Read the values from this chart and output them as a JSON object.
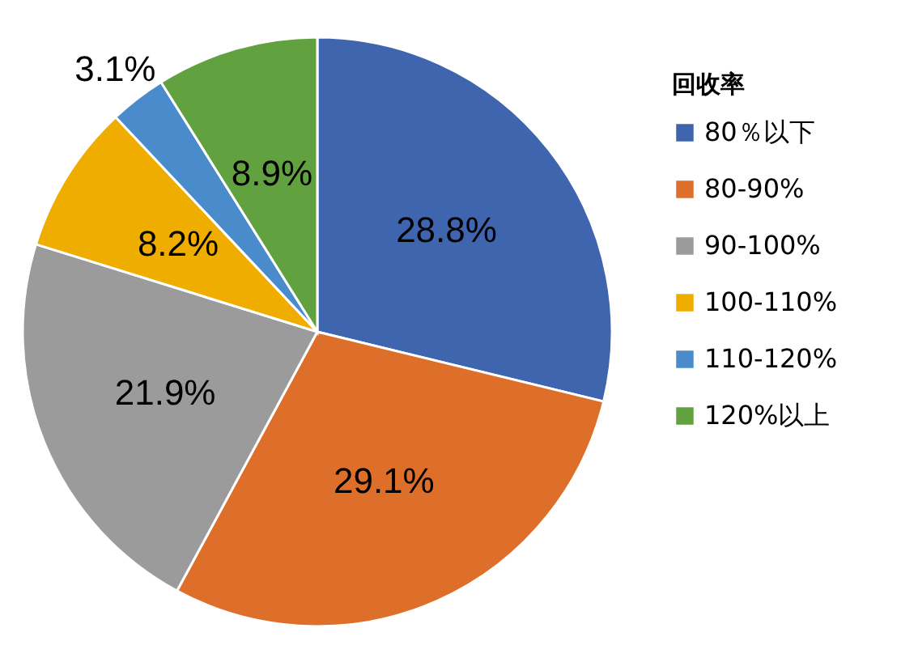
{
  "chart_data": {
    "type": "pie",
    "legend_title": "回收率",
    "categories": [
      "80％以下",
      "80-90%",
      "90-100%",
      "100-110%",
      "110-120%",
      "120%以上"
    ],
    "values": [
      28.8,
      29.1,
      21.9,
      8.2,
      3.1,
      8.9
    ],
    "colors": [
      "#3f65ae",
      "#dd6f2a",
      "#9b9b9b",
      "#efad00",
      "#4a8ccb",
      "#62a13f"
    ],
    "value_labels": [
      "28.8%",
      "29.1%",
      "21.9%",
      "8.2%",
      "3.1%",
      "8.9%"
    ],
    "legend": "right"
  }
}
